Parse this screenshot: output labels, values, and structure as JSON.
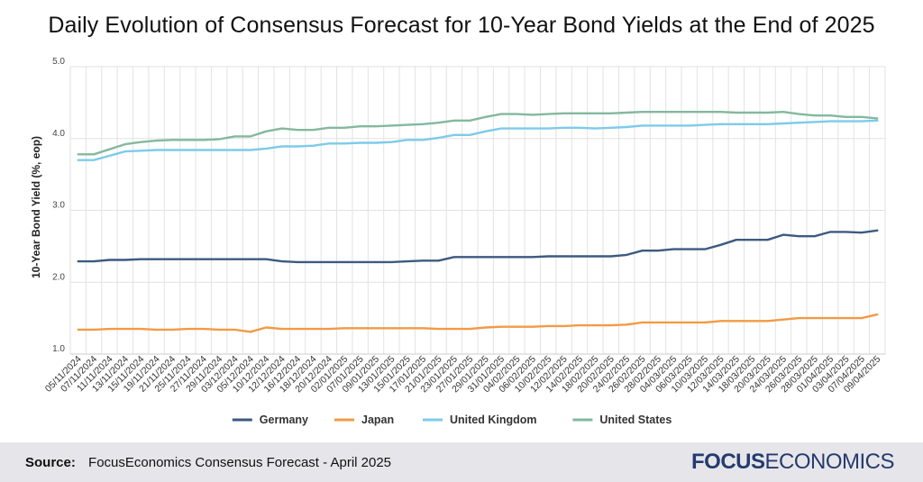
{
  "chart_data": {
    "type": "line",
    "title": "Daily Evolution of Consensus Forecast for 10-Year Bond Yields at the End of 2025",
    "xlabel": "",
    "ylabel": "10-Year Bond Yield (%, eop)",
    "ylim": [
      1.0,
      5.0
    ],
    "yticks": [
      "1.0",
      "2.0",
      "3.0",
      "4.0",
      "5.0"
    ],
    "grid": true,
    "legend_position": "bottom",
    "categories": [
      "05/11/2024",
      "07/11/2024",
      "11/11/2024",
      "13/11/2024",
      "15/11/2024",
      "19/11/2024",
      "21/11/2024",
      "25/11/2024",
      "27/11/2024",
      "29/11/2024",
      "03/12/2024",
      "05/12/2024",
      "10/12/2024",
      "12/12/2024",
      "16/12/2024",
      "18/12/2024",
      "20/12/2024",
      "02/01/2025",
      "07/01/2025",
      "09/01/2025",
      "13/01/2025",
      "15/01/2025",
      "17/01/2025",
      "21/01/2025",
      "23/01/2025",
      "27/01/2025",
      "29/01/2025",
      "31/01/2025",
      "04/02/2025",
      "06/02/2025",
      "10/02/2025",
      "12/02/2025",
      "14/02/2025",
      "18/02/2025",
      "20/02/2025",
      "24/02/2025",
      "26/02/2025",
      "28/02/2025",
      "04/03/2025",
      "06/03/2025",
      "10/03/2025",
      "12/03/2025",
      "14/03/2025",
      "18/03/2025",
      "20/03/2025",
      "24/03/2025",
      "26/03/2025",
      "28/03/2025",
      "01/04/2025",
      "03/04/2025",
      "07/04/2025",
      "09/04/2025"
    ],
    "series": [
      {
        "name": "Germany",
        "color": "#3c5a80",
        "values": [
          2.29,
          2.29,
          2.31,
          2.31,
          2.32,
          2.32,
          2.32,
          2.32,
          2.32,
          2.32,
          2.32,
          2.32,
          2.32,
          2.29,
          2.28,
          2.28,
          2.28,
          2.28,
          2.28,
          2.28,
          2.28,
          2.29,
          2.3,
          2.3,
          2.35,
          2.35,
          2.35,
          2.35,
          2.35,
          2.35,
          2.36,
          2.36,
          2.36,
          2.36,
          2.36,
          2.38,
          2.44,
          2.44,
          2.46,
          2.46,
          2.46,
          2.52,
          2.59,
          2.59,
          2.59,
          2.66,
          2.64,
          2.64,
          2.7,
          2.7,
          2.69,
          2.72
        ]
      },
      {
        "name": "Japan",
        "color": "#f29a46",
        "values": [
          1.34,
          1.34,
          1.35,
          1.35,
          1.35,
          1.34,
          1.34,
          1.35,
          1.35,
          1.34,
          1.34,
          1.31,
          1.37,
          1.35,
          1.35,
          1.35,
          1.35,
          1.36,
          1.36,
          1.36,
          1.36,
          1.36,
          1.36,
          1.35,
          1.35,
          1.35,
          1.37,
          1.38,
          1.38,
          1.38,
          1.39,
          1.39,
          1.4,
          1.4,
          1.4,
          1.41,
          1.44,
          1.44,
          1.44,
          1.44,
          1.44,
          1.46,
          1.46,
          1.46,
          1.46,
          1.48,
          1.5,
          1.5,
          1.5,
          1.5,
          1.5,
          1.55
        ]
      },
      {
        "name": "United Kingdom",
        "color": "#7dcbea",
        "values": [
          3.7,
          3.7,
          3.76,
          3.82,
          3.83,
          3.84,
          3.84,
          3.84,
          3.84,
          3.84,
          3.84,
          3.84,
          3.86,
          3.89,
          3.89,
          3.9,
          3.93,
          3.93,
          3.94,
          3.94,
          3.95,
          3.98,
          3.98,
          4.01,
          4.05,
          4.05,
          4.1,
          4.14,
          4.14,
          4.14,
          4.14,
          4.15,
          4.15,
          4.14,
          4.15,
          4.16,
          4.18,
          4.18,
          4.18,
          4.18,
          4.19,
          4.2,
          4.2,
          4.2,
          4.2,
          4.21,
          4.22,
          4.23,
          4.24,
          4.24,
          4.24,
          4.25
        ]
      },
      {
        "name": "United States",
        "color": "#84b89e",
        "values": [
          3.78,
          3.78,
          3.85,
          3.92,
          3.95,
          3.97,
          3.98,
          3.98,
          3.98,
          3.99,
          4.03,
          4.03,
          4.1,
          4.14,
          4.12,
          4.12,
          4.15,
          4.15,
          4.17,
          4.17,
          4.18,
          4.19,
          4.2,
          4.22,
          4.25,
          4.25,
          4.3,
          4.34,
          4.34,
          4.33,
          4.34,
          4.35,
          4.35,
          4.35,
          4.35,
          4.36,
          4.37,
          4.37,
          4.37,
          4.37,
          4.37,
          4.37,
          4.36,
          4.36,
          4.36,
          4.37,
          4.34,
          4.32,
          4.32,
          4.3,
          4.3,
          4.28
        ]
      }
    ]
  },
  "footer": {
    "source_label": "Source:",
    "source_text": "FocusEconomics Consensus Forecast - April 2025",
    "brand_bold": "FOCUS",
    "brand_light": "ECONOMICS"
  },
  "colors": {
    "axis": "#cccccc",
    "grid": "#e2e2e2",
    "footer_bg": "#e6e6ea",
    "brand": "#253b6e"
  }
}
